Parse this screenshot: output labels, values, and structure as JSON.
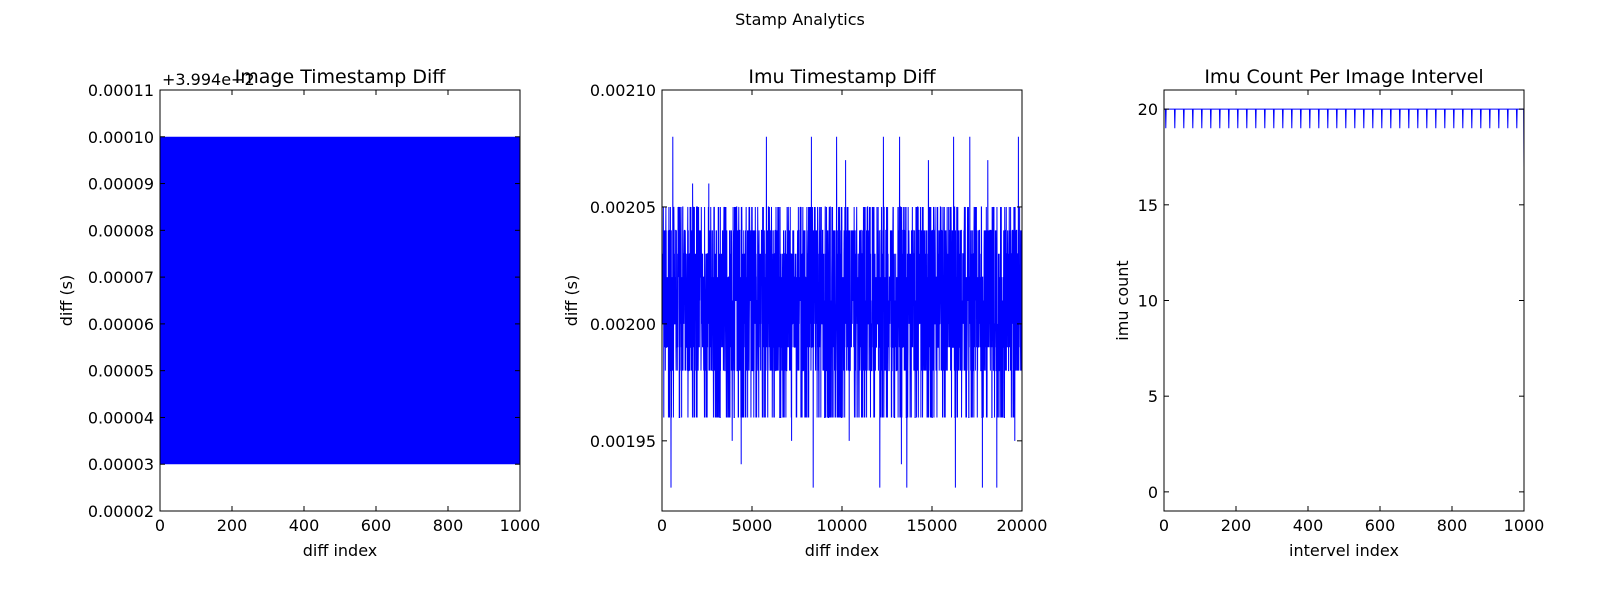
{
  "figure": {
    "suptitle": "Stamp Analytics"
  },
  "chart_data": [
    {
      "type": "line",
      "title": "Image Timestamp Diff",
      "xlabel": "diff index",
      "ylabel": "diff (s)",
      "y_offset_label": "+3.994e−2",
      "xlim": [
        0,
        1000
      ],
      "ylim": [
        2e-05,
        0.00011
      ],
      "xticks": [
        0,
        200,
        400,
        600,
        800,
        1000
      ],
      "xtick_labels": [
        "0",
        "200",
        "400",
        "600",
        "800",
        "1000"
      ],
      "yticks": [
        2e-05,
        3e-05,
        4e-05,
        5e-05,
        6e-05,
        7e-05,
        8e-05,
        9e-05,
        0.0001,
        0.00011
      ],
      "ytick_labels": [
        "0.00002",
        "0.00003",
        "0.00004",
        "0.00005",
        "0.00006",
        "0.00007",
        "0.00008",
        "0.00009",
        "0.00010",
        "0.00011"
      ],
      "color": "#0000ff",
      "grid": false,
      "series": [
        {
          "pattern": "alternating",
          "x_range": [
            0,
            1000
          ],
          "points": 1000,
          "low": 3e-05,
          "high": 0.0001
        }
      ]
    },
    {
      "type": "line",
      "title": "Imu Timestamp Diff",
      "xlabel": "diff index",
      "ylabel": "diff (s)",
      "xlim": [
        0,
        20000
      ],
      "ylim": [
        0.00192,
        0.0021
      ],
      "xticks": [
        0,
        5000,
        10000,
        15000,
        20000
      ],
      "xtick_labels": [
        "0",
        "5000",
        "10000",
        "15000",
        "20000"
      ],
      "yticks": [
        0.00195,
        0.002,
        0.00205,
        0.0021
      ],
      "ytick_labels": [
        "0.00195",
        "0.00200",
        "0.00205",
        "0.00210"
      ],
      "color": "#0000ff",
      "grid": false,
      "series": [
        {
          "pattern": "noise",
          "x_range": [
            0,
            20000
          ],
          "points": 2400,
          "levels": [
            0.00198,
            0.00199,
            0.002,
            0.00201,
            0.00202,
            0.00203,
            0.00204
          ],
          "upper_band": 0.00205,
          "lower_band": 0.00196,
          "spikes_high": [
            [
              600,
              0.00208
            ],
            [
              5800,
              0.00208
            ],
            [
              8300,
              0.00208
            ],
            [
              9700,
              0.00208
            ],
            [
              12300,
              0.00208
            ],
            [
              13200,
              0.00208
            ],
            [
              16200,
              0.00208
            ],
            [
              17100,
              0.00208
            ],
            [
              19800,
              0.00208
            ],
            [
              1700,
              0.00206
            ],
            [
              2600,
              0.00206
            ],
            [
              10200,
              0.00207
            ],
            [
              14800,
              0.00207
            ],
            [
              18100,
              0.00207
            ]
          ],
          "spikes_low": [
            [
              500,
              0.00193
            ],
            [
              4400,
              0.00194
            ],
            [
              8400,
              0.00193
            ],
            [
              12100,
              0.00193
            ],
            [
              13300,
              0.00194
            ],
            [
              13600,
              0.00193
            ],
            [
              16300,
              0.00193
            ],
            [
              17800,
              0.00193
            ],
            [
              18600,
              0.00193
            ],
            [
              3900,
              0.00195
            ],
            [
              7200,
              0.00195
            ],
            [
              10400,
              0.00195
            ],
            [
              19600,
              0.00195
            ]
          ]
        }
      ]
    },
    {
      "type": "line",
      "title": "Imu Count Per Image Intervel",
      "xlabel": "intervel index",
      "ylabel": "imu count",
      "xlim": [
        0,
        1000
      ],
      "ylim": [
        -1,
        21
      ],
      "xticks": [
        0,
        200,
        400,
        600,
        800,
        1000
      ],
      "xtick_labels": [
        "0",
        "200",
        "400",
        "600",
        "800",
        "1000"
      ],
      "yticks": [
        0,
        5,
        10,
        15,
        20
      ],
      "ytick_labels": [
        "0",
        "5",
        "10",
        "15",
        "20"
      ],
      "color": "#0000ff",
      "grid": false,
      "series": [
        {
          "pattern": "periodic_dips",
          "base": 20,
          "dip": 19,
          "dip_every": 25,
          "dip_start": 5,
          "last_point": [
            1000,
            17
          ]
        }
      ]
    }
  ]
}
